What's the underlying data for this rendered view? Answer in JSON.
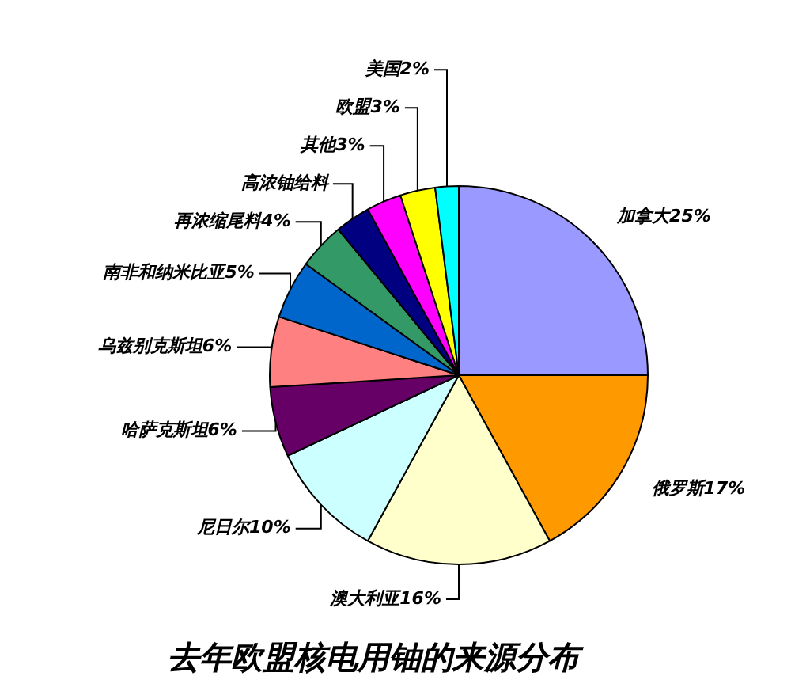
{
  "chart_data": {
    "type": "pie",
    "title": "去年欧盟核电用铀的来源分布",
    "categories": [
      "加拿大",
      "俄罗斯",
      "澳大利亚",
      "尼日尔",
      "哈萨克斯坦",
      "乌兹别克斯坦",
      "南非和纳米比亚",
      "再浓缩尾料",
      "高浓铀给料",
      "其他",
      "欧盟",
      "美国"
    ],
    "values": [
      25,
      17,
      16,
      10,
      6,
      6,
      5,
      4,
      3,
      3,
      3,
      2
    ],
    "value_labels": [
      "25%",
      "17%",
      "16%",
      "10%",
      "6%",
      "6%",
      "5%",
      "4%",
      null,
      "3%",
      "3%",
      "2%"
    ],
    "colors": [
      "#9999ff",
      "#ff9900",
      "#ffffcc",
      "#ccffff",
      "#660066",
      "#ff8080",
      "#0066cc",
      "#339966",
      "#000080",
      "#ff00ff",
      "#ffff00",
      "#00ffff"
    ],
    "legend": false
  }
}
